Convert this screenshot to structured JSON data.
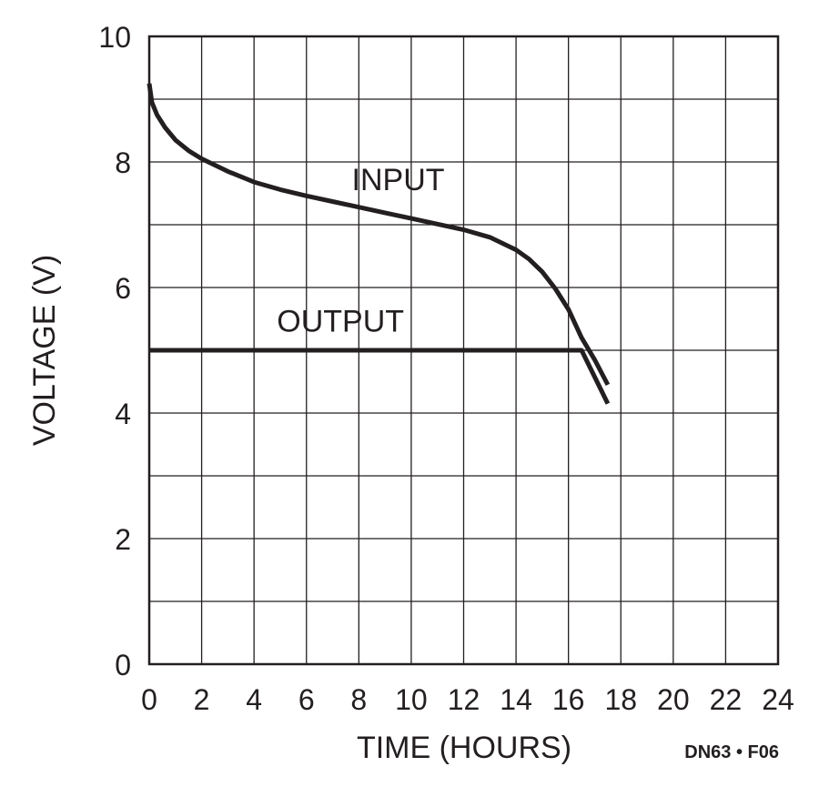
{
  "chart_data": {
    "type": "line",
    "xlabel": "TIME (HOURS)",
    "ylabel": "VOLTAGE (V)",
    "xlim": [
      0,
      24
    ],
    "ylim": [
      0,
      10
    ],
    "x_ticks": [
      "0",
      "2",
      "4",
      "6",
      "8",
      "10",
      "12",
      "14",
      "16",
      "18",
      "20",
      "22",
      "24"
    ],
    "y_ticks": [
      "0",
      "2",
      "4",
      "6",
      "8",
      "10"
    ],
    "grid": true,
    "series": [
      {
        "name": "INPUT",
        "x": [
          0,
          0.1,
          0.3,
          0.6,
          1,
          1.5,
          2,
          3,
          4,
          5,
          6,
          7,
          8,
          9,
          10,
          11,
          12,
          13,
          14,
          14.5,
          15,
          15.5,
          16,
          16.5,
          17,
          17.5
        ],
        "y": [
          9.25,
          8.95,
          8.75,
          8.55,
          8.35,
          8.18,
          8.05,
          7.85,
          7.68,
          7.56,
          7.46,
          7.37,
          7.28,
          7.19,
          7.1,
          7.01,
          6.92,
          6.8,
          6.6,
          6.45,
          6.25,
          5.98,
          5.65,
          5.2,
          4.85,
          4.45
        ]
      },
      {
        "name": "OUTPUT",
        "x": [
          0,
          16.5,
          17.5
        ],
        "y": [
          5.0,
          5.0,
          4.15
        ]
      }
    ],
    "footnote": "DN63 • F06"
  },
  "colors": {
    "line": "#231f20",
    "grid": "#231f20",
    "background": "#ffffff"
  }
}
